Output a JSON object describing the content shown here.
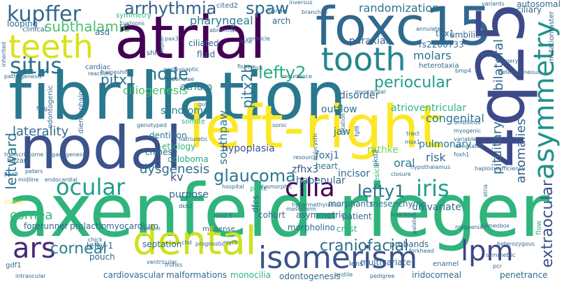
{
  "words": {
    "axenfeld_rieger": "axenfeld-rieger",
    "fibrillation": "fibrillation",
    "nodal": "nodal",
    "left_right": "left-right",
    "atrial": "atrial",
    "foxc15": "foxc15",
    "q4q25": "4q25",
    "dental": "dental",
    "teeth": "teeth",
    "tooth": "tooth",
    "asymmetry": "asymmetry",
    "isomerism": "isomerism",
    "lpm": "lpm",
    "ars": "ars",
    "cilia": "cilia",
    "ocular": "ocular",
    "iris": "iris",
    "situs": "situs",
    "kupffer": "kupffer",
    "arrhythmia": "arrhythmia",
    "spaw": "spaw",
    "glaucoma": "glaucoma",
    "periocular": "periocular",
    "lefty1": "lefty1",
    "lefty2": "lefty2",
    "craniofacial": "craniofacial",
    "corneal": "corneal",
    "cornea": "cornea",
    "extraocular": "extraocular",
    "subthalamic": "subthalamic",
    "pharyngeal": "pharyngeal",
    "node": "node",
    "pitx1": "pitx1",
    "pitx2b": "pitx2b",
    "leftward": "leftward",
    "laterality": "laterality",
    "dysgenesis": "dysgenesis",
    "southpaw": "southpaw",
    "randomization": "randomization",
    "paraxial": "paraxial",
    "molars": "molars",
    "bilateral": "bilateral",
    "pituitary": "pituitary",
    "anomalies": "anomalies",
    "congenital": "congenital",
    "ciliogenesis": "ciliogenesis",
    "atrium": "atrium",
    "syndrome": "syndrome",
    "epithalamus": "epithalamus",
    "outflow": "outflow",
    "disorder": "disorder",
    "atrioventricular": "atrioventricular",
    "risk": "risk",
    "pulmonary": "pulmonary",
    "rathke": "rathke",
    "oral": "oral",
    "jaw": "jaw",
    "foxj1": "foxj1",
    "hypoplasia": "hypoplasia",
    "coloboma": "coloboma",
    "etiology": "etiology",
    "kv": "kv",
    "dentition": "dentition",
    "chinese": "chinese",
    "zfhx3": "zfhx3",
    "heart": "heart",
    "habenular": "habenular",
    "incisor": "incisor",
    "purpose": "purpose",
    "forerunner": "forerunner",
    "prolactin": "prolactin",
    "myocardium": "myocardium",
    "morphants": "morphants",
    "mesenchyme": "mesenchyme",
    "univariate": "univariate",
    "asymmetric": "asymmetric",
    "cohort": "cohort",
    "patient": "patient",
    "crest": "crest",
    "morpholino": "morpholino",
    "septation": "septation",
    "pouch": "pouch",
    "lefty_1": "lefty-1",
    "probands": "probands",
    "cardiovascular": "cardiovascular",
    "malformations": "malformations",
    "monocilia": "monocilia",
    "odontogenesis": "odontogenesis",
    "multivariate": "multivariate",
    "iridocorneal": "iridocorneal",
    "penetrance": "penetrance",
    "enamel": "enamel",
    "gdf1": "gdf1",
    "tbx1": "tbx1",
    "umbilical": "umbilical",
    "ciliary": "ciliary",
    "autosomal": "autosomal",
    "rs2200733": "rs2200733",
    "heterotaxia": "heterotaxia",
    "clinical": "clinical",
    "looping": "looping",
    "asd": "asd",
    "symmetry": "symmetry",
    "cited2": "cited2",
    "arch": "arch",
    "ciliated": "ciliated",
    "fluid": "fluid",
    "cardiac": "cardiac",
    "odontogenic": "odontogenic",
    "diencephalon": "diencephalon",
    "somite": "somite",
    "hazard": "hazard",
    "hypertrophy": "hypertrophy",
    "mutationtaster": "mutationtaster",
    "pathogenesis": "pathogenesis",
    "frog": "frog",
    "shh": "shh",
    "pax3": "pax3",
    "septal": "septal",
    "frameshift": "frameshift",
    "habenulae": "habenulae",
    "genotyped": "genotyped",
    "gut": "gut",
    "natriuretic": "natriuretic",
    "dkk2": "dkk2",
    "nkx2_5": "nkx2.5",
    "hospital": "hospital",
    "plate": "plate",
    "dysmorphic": "dysmorphic",
    "dfcs": "dfcs",
    "pkd2": "pkd2",
    "closure": "closure",
    "resource": "resource",
    "knockout": "knockout",
    "haploinsufficiency": "haploinsufficiency",
    "homeobox": "homeobox",
    "flow": "flow",
    "atria": "atria",
    "palate": "palate",
    "heterozygous": "heterozygous",
    "symmetric": "symmetric",
    "pcr": "pcr",
    "pedigree": "pedigree",
    "motile": "motile",
    "lens": "lens",
    "forkhead": "forkhead",
    "missense": "missense",
    "cilium": "cilium",
    "trunks": "trunks",
    "chd": "chd",
    "prognostic": "prognostic",
    "myf5": "myf5",
    "chick": "chick",
    "midline": "midline",
    "endocardial": "endocardial",
    "pax9": "pax9",
    "peters": "peters",
    "cranial": "cranial",
    "intraocular": "intraocular",
    "transcriptome": "transcriptome",
    "organogenesis": "organogenesis",
    "tract": "tract",
    "myogenic": "myogenic",
    "variable": "variable",
    "foxh1": "foxh1",
    "annotated": "annotated",
    "vesicle": "vesicle",
    "msx1": "msx1",
    "rotation": "rotation",
    "fgf8": "fgf8",
    "myocardial": "myocardial",
    "ventricle": "ventricle",
    "fish": "fish",
    "lone": "lone",
    "channel": "channel",
    "branchial": "branchial",
    "inversus": "inversus",
    "cushions": "cushions",
    "variants": "variants",
    "surgery": "surgery",
    "angle": "angle",
    "bmp4": "bmp4",
    "heterogeneous": "heterogeneous",
    "inherited": "inherited",
    "recurrence": "recurrence",
    "hypothalamus": "hypothalamus",
    "umbilicus": "umbilicus",
    "hypermethylation": "hypermethylation",
    "mesoderm": "mesoderm",
    "ventricular": "ventricular",
    "myopenia": "myopenia",
    "sonic": "sonic",
    "annulated": "annulated",
    "postsynaptic": "postsynaptic",
    "reaction": "reaction",
    "polycystic": "polycystic",
    "fishes": "fishes",
    "abnormal": "abnormal"
  }
}
